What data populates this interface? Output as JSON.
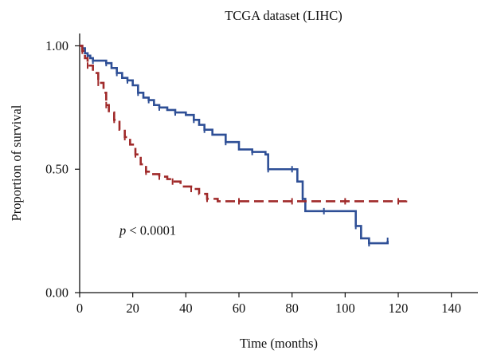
{
  "chart_data": {
    "type": "line",
    "title": "TCGA dataset (LIHC)",
    "xlabel": "Time (months)",
    "ylabel": "Proportion of survival",
    "xlim": [
      0,
      150
    ],
    "ylim": [
      0,
      1.05
    ],
    "xticks": [
      0,
      20,
      40,
      60,
      80,
      100,
      120,
      140
    ],
    "yticks": [
      0.0,
      0.5,
      1.0
    ],
    "ytick_labels": [
      "0.00",
      "0.50",
      "1.00"
    ],
    "grid": false,
    "annotation": {
      "italic": "p",
      "text": " < 0.0001",
      "x": 15,
      "y": 0.25
    },
    "series": [
      {
        "color": "#2e4f96",
        "dashed": false,
        "x": [
          0,
          1,
          2,
          3,
          4,
          5,
          7,
          10,
          12,
          14,
          16,
          18,
          20,
          22,
          24,
          26,
          28,
          30,
          33,
          36,
          40,
          43,
          45,
          47,
          50,
          55,
          60,
          65,
          70,
          71,
          75,
          80,
          82,
          84,
          85,
          92,
          100,
          104,
          106,
          109,
          114,
          116
        ],
        "y": [
          1.0,
          0.99,
          0.97,
          0.96,
          0.95,
          0.94,
          0.94,
          0.93,
          0.91,
          0.89,
          0.87,
          0.86,
          0.84,
          0.81,
          0.79,
          0.78,
          0.76,
          0.75,
          0.74,
          0.73,
          0.72,
          0.7,
          0.68,
          0.66,
          0.64,
          0.61,
          0.58,
          0.57,
          0.56,
          0.5,
          0.5,
          0.5,
          0.45,
          0.38,
          0.33,
          0.33,
          0.33,
          0.27,
          0.22,
          0.2,
          0.2,
          0.21
        ]
      },
      {
        "color": "#a02a2a",
        "dashed": true,
        "x": [
          0,
          1,
          2,
          3,
          5,
          7,
          9,
          10,
          11,
          13,
          15,
          17,
          19,
          21,
          23,
          25,
          27,
          30,
          33,
          35,
          38,
          42,
          45,
          48,
          52,
          60,
          70,
          80,
          90,
          100,
          110,
          120,
          123
        ],
        "y": [
          1.0,
          0.98,
          0.95,
          0.92,
          0.89,
          0.85,
          0.81,
          0.76,
          0.73,
          0.7,
          0.66,
          0.63,
          0.6,
          0.56,
          0.52,
          0.49,
          0.48,
          0.47,
          0.46,
          0.45,
          0.43,
          0.42,
          0.4,
          0.38,
          0.37,
          0.37,
          0.37,
          0.37,
          0.37,
          0.37,
          0.37,
          0.37,
          0.38
        ]
      }
    ]
  }
}
